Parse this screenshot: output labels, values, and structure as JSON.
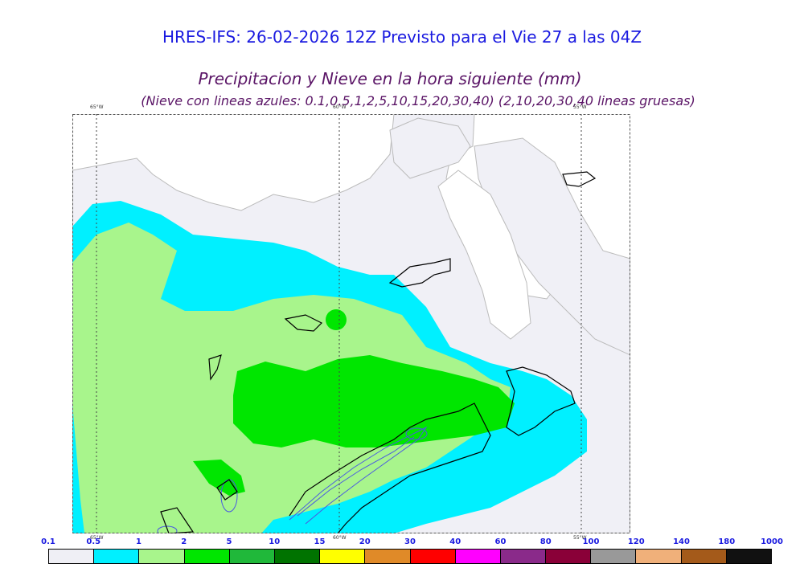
{
  "header": {
    "title": "HRES-IFS: 26-02-2026 12Z Previsto para el Vie 27 a las 04Z",
    "subtitle": "Precipitacion y Nieve en la hora siguiente (mm)",
    "note": "(Nieve con lineas azules: 0.1,0.5,1,2,5,10,15,20,30,40)  (2,10,20,30,40 lineas gruesas)"
  },
  "map": {
    "lon_labels_top": [
      "65°W",
      "60°W",
      "55°W"
    ],
    "lon_labels_bottom": [
      "65°W",
      "60°W",
      "55°W"
    ],
    "colors": {
      "very_light": "#f0f0f6",
      "cyan": "#00f0ff",
      "light_green": "#a8f58c",
      "green": "#00e600",
      "snow_line": "#4a5ae0",
      "coast": "#000000",
      "grid": "#444444",
      "frame": "#555555"
    }
  },
  "legend": {
    "labels": [
      "0.1",
      "0.5",
      "1",
      "2",
      "5",
      "10",
      "15",
      "20",
      "30",
      "40",
      "60",
      "80",
      "100",
      "120",
      "140",
      "180",
      "1000"
    ],
    "colors": [
      "#efeff5",
      "#00f0ff",
      "#a8f58c",
      "#00e600",
      "#20b83a",
      "#007300",
      "#ffff00",
      "#e08a28",
      "#ff0000",
      "#ff00ff",
      "#8a2a8a",
      "#8a0038",
      "#999999",
      "#f0b07a",
      "#a45a1a",
      "#111111"
    ]
  }
}
